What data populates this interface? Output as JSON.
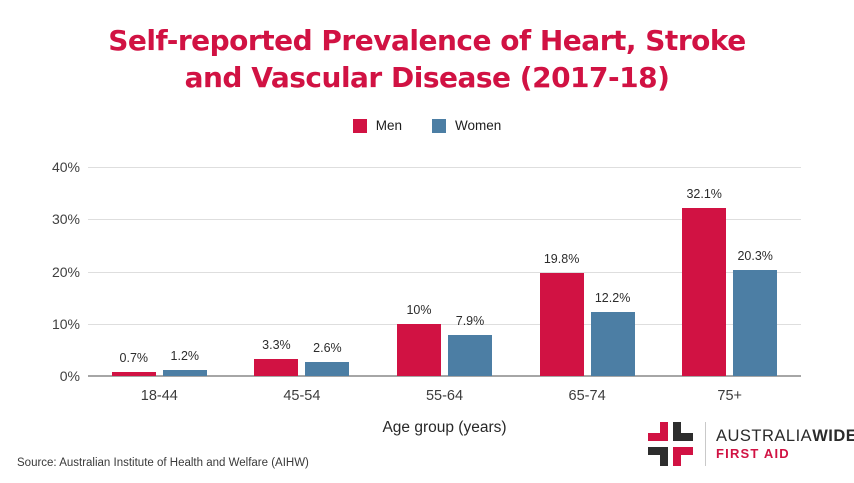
{
  "title": {
    "line1": "Self-reported Prevalence of Heart, Stroke",
    "line2": "and Vascular Disease (2017-18)"
  },
  "legend": [
    {
      "label": "Men",
      "color": "#d11243"
    },
    {
      "label": "Women",
      "color": "#4c7ea4"
    }
  ],
  "chart_data": {
    "type": "bar",
    "title": "Self-reported Prevalence of Heart, Stroke and Vascular Disease (2017-18)",
    "categories": [
      "18-44",
      "45-54",
      "55-64",
      "65-74",
      "75+"
    ],
    "series": [
      {
        "name": "Men",
        "color": "#d11243",
        "values": [
          0.7,
          3.3,
          10,
          19.8,
          32.1
        ],
        "labels": [
          "0.7%",
          "3.3%",
          "10%",
          "19.8%",
          "32.1%"
        ]
      },
      {
        "name": "Women",
        "color": "#4c7ea4",
        "values": [
          1.2,
          2.6,
          7.9,
          12.2,
          20.3
        ],
        "labels": [
          "1.2%",
          "2.6%",
          "7.9%",
          "12.2%",
          "20.3%"
        ]
      }
    ],
    "xlabel": "Age group (years)",
    "ylabel": "",
    "ylim": [
      0,
      40
    ],
    "ytick_labels": [
      "0%",
      "10%",
      "20%",
      "30%",
      "40%"
    ],
    "ytick_values": [
      0,
      10,
      20,
      30,
      40
    ],
    "grid": true,
    "legend_position": "top"
  },
  "xaxis_title": "Age group (years)",
  "source": "Source: Australian Institute of Health and Welfare (AIHW)",
  "logo": {
    "brand_regular": "AUSTRALIA",
    "brand_bold": "WIDE",
    "subtitle": "FIRST AID"
  },
  "colors": {
    "title": "#d11243",
    "men": "#d11243",
    "women": "#4c7ea4",
    "logo_red": "#d11243",
    "logo_charcoal": "#2d2d2d",
    "first_aid_text": "#d11243"
  }
}
